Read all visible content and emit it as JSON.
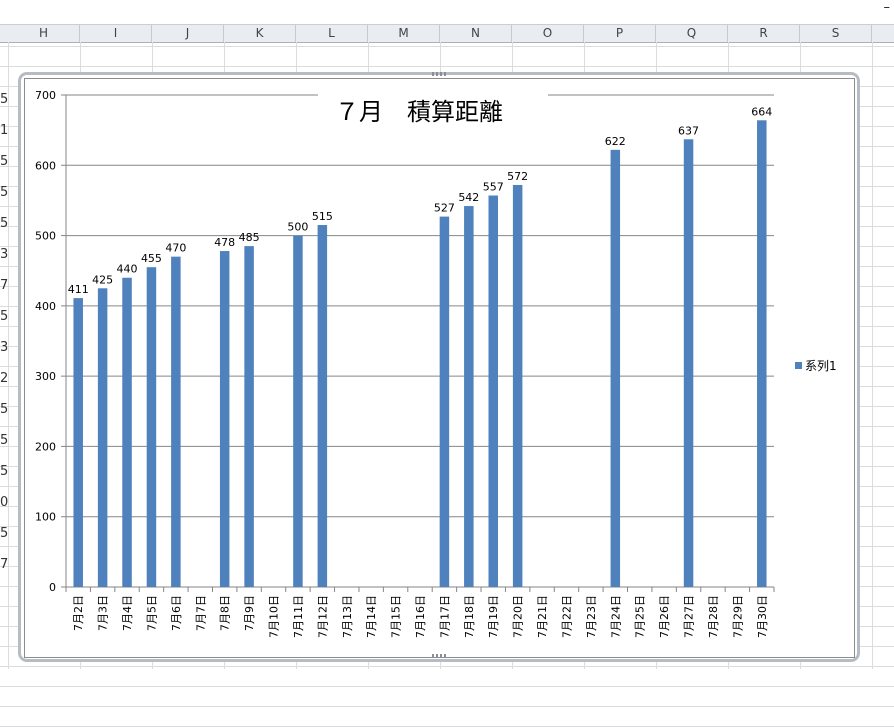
{
  "sheet": {
    "columns": [
      "H",
      "I",
      "J",
      "K",
      "L",
      "M",
      "N",
      "O",
      "P",
      "Q",
      "R",
      "S"
    ],
    "row_fragments": [
      "5",
      "1",
      "5",
      "5",
      "5",
      "3",
      "7",
      "5",
      "3",
      "2",
      "5",
      "5",
      "5",
      "0",
      "5",
      "7"
    ],
    "window_control": "–"
  },
  "colors": {
    "bar": "#4f81bd",
    "gridline": "#868686",
    "axis": "#868686"
  },
  "chart_data": {
    "type": "bar",
    "title": "７月　積算距離",
    "categories": [
      "7月2日",
      "7月3日",
      "7月4日",
      "7月5日",
      "7月6日",
      "7月7日",
      "7月8日",
      "7月9日",
      "7月10日",
      "7月11日",
      "7月12日",
      "7月13日",
      "7月14日",
      "7月15日",
      "7月16日",
      "7月17日",
      "7月18日",
      "7月19日",
      "7月20日",
      "7月21日",
      "7月22日",
      "7月23日",
      "7月24日",
      "7月25日",
      "7月26日",
      "7月27日",
      "7月28日",
      "7月29日",
      "7月30日"
    ],
    "series": [
      {
        "name": "系列1",
        "values": [
          411,
          425,
          440,
          455,
          470,
          null,
          478,
          485,
          null,
          500,
          515,
          null,
          null,
          null,
          null,
          527,
          542,
          557,
          572,
          null,
          null,
          null,
          622,
          null,
          null,
          637,
          null,
          null,
          664
        ]
      }
    ],
    "ylim": [
      0,
      700
    ],
    "yticks": [
      0,
      100,
      200,
      300,
      400,
      500,
      600,
      700
    ],
    "grid": true,
    "legend": "right",
    "data_labels": true
  }
}
